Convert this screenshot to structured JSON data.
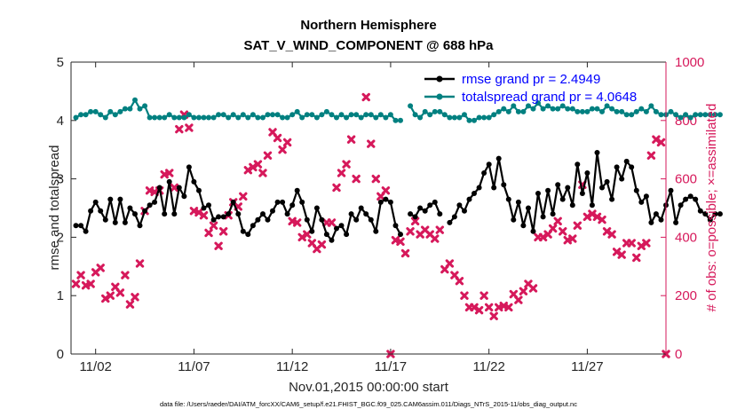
{
  "chart_data": {
    "type": "line",
    "title": "Northern Hemisphere",
    "subtitle": "SAT_V_WIND_COMPONENT @ 688 hPa",
    "xlabel": "Nov.01,2015 00:00:00 start",
    "ylabel": "rmse and totalspread",
    "y2label": "# of obs: o=possible; ×=assimilated",
    "footnote": "data file: /Users/raeder/DAI/ATM_forcXX/CAM6_setup/f.e21.FHIST_BGC.f09_025.CAM6assim.011/Diags_NTrS_2015-11/obs_diag_output.nc",
    "xlim": [
      0.75,
      31.0
    ],
    "ylim": [
      0,
      5
    ],
    "y2lim": [
      0,
      1000
    ],
    "x_ticks": [
      2,
      7,
      12,
      17,
      22,
      27
    ],
    "x_tick_labels": [
      "11/02",
      "11/07",
      "11/12",
      "11/17",
      "11/22",
      "11/27"
    ],
    "y_ticks": [
      "0",
      "1",
      "2",
      "3",
      "4",
      "5"
    ],
    "y2_ticks": [
      "0",
      "200",
      "400",
      "600",
      "800",
      "1000"
    ],
    "legend": [
      {
        "label": "rmse grand pr = 2.4949",
        "color": "#000000",
        "marker": "circle"
      },
      {
        "label": "totalspread grand pr = 4.0648",
        "color": "#008080",
        "marker": "circle"
      }
    ],
    "series": [
      {
        "name": "rmse",
        "axis": "left",
        "color": "#000000",
        "x_start": 1.0,
        "x_step": 0.25,
        "values": [
          2.2,
          2.2,
          2.1,
          2.45,
          2.6,
          2.45,
          2.3,
          2.65,
          2.25,
          2.65,
          2.25,
          2.5,
          2.4,
          2.2,
          2.45,
          2.55,
          2.6,
          2.85,
          2.4,
          2.95,
          2.4,
          2.85,
          2.7,
          3.2,
          2.95,
          2.8,
          2.5,
          2.55,
          2.3,
          2.35,
          2.35,
          2.4,
          2.6,
          2.4,
          2.1,
          2.05,
          2.2,
          2.3,
          2.4,
          2.3,
          2.45,
          2.6,
          2.6,
          2.4,
          2.55,
          2.8,
          2.6,
          2.3,
          2.1,
          2.5,
          2.3,
          2.05,
          1.95,
          2.15,
          2.2,
          2.05,
          2.4,
          2.3,
          2.5,
          2.4,
          2.3,
          2.1,
          2.6,
          2.65,
          2.6,
          2.2,
          2.05,
          null,
          2.4,
          2.35,
          2.5,
          2.45,
          2.55,
          2.6,
          2.4,
          null,
          2.25,
          2.35,
          2.55,
          2.45,
          2.65,
          2.75,
          2.85,
          3.1,
          3.25,
          2.85,
          3.35,
          2.9,
          2.65,
          2.3,
          2.6,
          2.2,
          2.5,
          2.1,
          2.75,
          2.35,
          2.8,
          2.4,
          2.9,
          2.65,
          2.85,
          2.55,
          3.25,
          2.75,
          3.1,
          2.55,
          3.45,
          2.85,
          2.95,
          2.65,
          3.2,
          3.0,
          3.3,
          3.2,
          2.8,
          2.6,
          2.7,
          2.25,
          2.4,
          2.3,
          2.55,
          2.8,
          2.25,
          2.55,
          2.65,
          2.7,
          2.65,
          2.45,
          2.4,
          2.3,
          2.4,
          2.4
        ]
      },
      {
        "name": "totalspread",
        "axis": "left",
        "color": "#008080",
        "x_start": 1.0,
        "x_step": 0.25,
        "values": [
          4.05,
          4.1,
          4.1,
          4.15,
          4.15,
          4.1,
          4.05,
          4.15,
          4.1,
          4.15,
          4.2,
          4.2,
          4.35,
          4.2,
          4.25,
          4.05,
          4.05,
          4.05,
          4.05,
          4.1,
          4.05,
          4.05,
          4.05,
          4.1,
          4.05,
          4.05,
          4.05,
          4.05,
          4.05,
          4.1,
          4.1,
          4.05,
          4.1,
          4.05,
          4.1,
          4.05,
          4.1,
          4.05,
          4.05,
          4.1,
          4.1,
          4.1,
          4.05,
          4.05,
          4.1,
          4.15,
          4.05,
          4.1,
          4.1,
          4.05,
          4.1,
          4.15,
          4.1,
          4.05,
          4.1,
          4.05,
          4.1,
          4.1,
          4.05,
          4.1,
          4.1,
          4.05,
          4.1,
          4.05,
          4.1,
          4.0,
          4.0,
          null,
          4.25,
          4.1,
          4.05,
          4.15,
          4.1,
          4.15,
          4.15,
          4.1,
          4.05,
          4.05,
          4.05,
          4.1,
          4.0,
          4.0,
          4.05,
          4.05,
          4.05,
          4.1,
          4.15,
          4.2,
          4.15,
          4.25,
          4.15,
          4.15,
          4.25,
          4.2,
          4.3,
          4.2,
          4.25,
          4.2,
          4.2,
          4.25,
          4.2,
          4.2,
          4.15,
          4.15,
          4.15,
          4.2,
          4.2,
          4.15,
          4.25,
          4.2,
          4.15,
          4.15,
          4.1,
          4.1,
          4.15,
          4.2,
          4.15,
          4.25,
          4.15,
          4.1,
          4.1,
          4.15,
          4.1,
          4.05,
          4.1,
          4.05,
          4.1,
          4.1,
          4.1,
          4.1,
          4.1,
          4.1
        ]
      },
      {
        "name": "obs assimilated",
        "axis": "right",
        "color": "#d6195b",
        "marker": "x",
        "points": [
          [
            1.0,
            240
          ],
          [
            1.25,
            270
          ],
          [
            1.5,
            235
          ],
          [
            1.75,
            240
          ],
          [
            2.0,
            280
          ],
          [
            2.25,
            295
          ],
          [
            2.5,
            190
          ],
          [
            2.75,
            200
          ],
          [
            3.0,
            230
          ],
          [
            3.25,
            210
          ],
          [
            3.5,
            270
          ],
          [
            3.75,
            170
          ],
          [
            4.0,
            195
          ],
          [
            4.25,
            310
          ],
          [
            4.5,
            490
          ],
          [
            4.75,
            560
          ],
          [
            5.0,
            555
          ],
          [
            5.25,
            560
          ],
          [
            5.5,
            615
          ],
          [
            5.75,
            620
          ],
          [
            6.0,
            570
          ],
          [
            6.25,
            770
          ],
          [
            6.5,
            820
          ],
          [
            6.75,
            775
          ],
          [
            7.0,
            490
          ],
          [
            7.25,
            485
          ],
          [
            7.5,
            475
          ],
          [
            7.75,
            415
          ],
          [
            8.0,
            440
          ],
          [
            8.25,
            370
          ],
          [
            8.5,
            420
          ],
          [
            8.75,
            475
          ],
          [
            9.0,
            520
          ],
          [
            9.25,
            505
          ],
          [
            9.5,
            540
          ],
          [
            9.75,
            630
          ],
          [
            10.0,
            640
          ],
          [
            10.25,
            650
          ],
          [
            10.5,
            620
          ],
          [
            10.75,
            680
          ],
          [
            11.0,
            760
          ],
          [
            11.25,
            740
          ],
          [
            11.5,
            700
          ],
          [
            11.75,
            725
          ],
          [
            12.0,
            455
          ],
          [
            12.25,
            450
          ],
          [
            12.5,
            400
          ],
          [
            12.75,
            410
          ],
          [
            13.0,
            380
          ],
          [
            13.25,
            360
          ],
          [
            13.5,
            375
          ],
          [
            13.75,
            450
          ],
          [
            14.0,
            450
          ],
          [
            14.25,
            570
          ],
          [
            14.5,
            620
          ],
          [
            14.75,
            650
          ],
          [
            15.0,
            735
          ],
          [
            15.25,
            600
          ],
          [
            15.75,
            880
          ],
          [
            16.0,
            720
          ],
          [
            16.25,
            600
          ],
          [
            16.5,
            540
          ],
          [
            16.75,
            560
          ],
          [
            17.0,
            0
          ],
          [
            17.25,
            390
          ],
          [
            17.5,
            385
          ],
          [
            17.75,
            345
          ],
          [
            18.0,
            420
          ],
          [
            18.25,
            455
          ],
          [
            18.5,
            410
          ],
          [
            18.75,
            425
          ],
          [
            19.0,
            410
          ],
          [
            19.25,
            395
          ],
          [
            19.5,
            425
          ],
          [
            19.75,
            290
          ],
          [
            20.0,
            310
          ],
          [
            20.25,
            270
          ],
          [
            20.5,
            250
          ],
          [
            20.75,
            200
          ],
          [
            21.0,
            160
          ],
          [
            21.25,
            160
          ],
          [
            21.5,
            150
          ],
          [
            21.75,
            200
          ],
          [
            22.0,
            160
          ],
          [
            22.25,
            130
          ],
          [
            22.5,
            160
          ],
          [
            22.75,
            165
          ],
          [
            23.0,
            160
          ],
          [
            23.25,
            205
          ],
          [
            23.5,
            185
          ],
          [
            23.75,
            215
          ],
          [
            24.0,
            240
          ],
          [
            24.25,
            225
          ],
          [
            24.5,
            400
          ],
          [
            24.75,
            400
          ],
          [
            25.0,
            410
          ],
          [
            25.25,
            430
          ],
          [
            25.5,
            455
          ],
          [
            25.75,
            420
          ],
          [
            26.0,
            390
          ],
          [
            26.25,
            395
          ],
          [
            26.5,
            440
          ],
          [
            26.75,
            580
          ],
          [
            27.0,
            470
          ],
          [
            27.25,
            480
          ],
          [
            27.5,
            470
          ],
          [
            27.75,
            460
          ],
          [
            28.0,
            420
          ],
          [
            28.25,
            410
          ],
          [
            28.5,
            350
          ],
          [
            28.75,
            340
          ],
          [
            29.0,
            380
          ],
          [
            29.25,
            380
          ],
          [
            29.5,
            330
          ],
          [
            29.75,
            370
          ],
          [
            30.0,
            380
          ],
          [
            30.25,
            680
          ],
          [
            30.5,
            735
          ],
          [
            30.75,
            725
          ],
          [
            31.0,
            0
          ]
        ]
      }
    ]
  }
}
